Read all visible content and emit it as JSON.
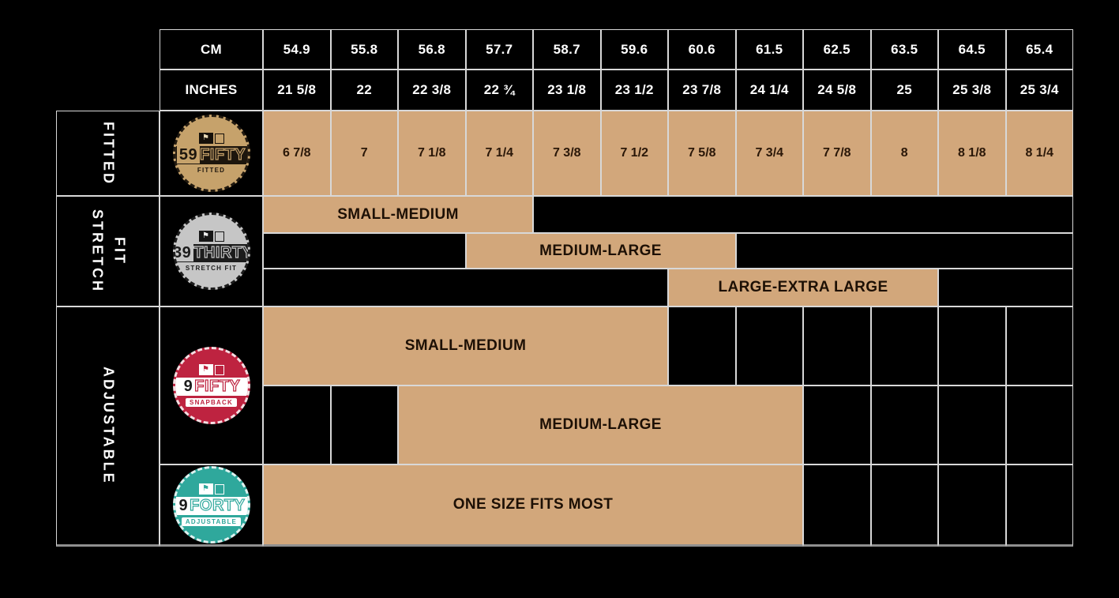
{
  "chart_data": {
    "type": "table",
    "header": {
      "cm_label": "CM",
      "inches_label": "INCHES",
      "cm": [
        "54.9",
        "55.8",
        "56.8",
        "57.7",
        "58.7",
        "59.6",
        "60.6",
        "61.5",
        "62.5",
        "63.5",
        "64.5",
        "65.4"
      ],
      "inches": [
        "21 5/8",
        "22",
        "22 3/8",
        "22 ¾",
        "23 1/8",
        "23 1/2",
        "23 7/8",
        "24 1/4",
        "24 5/8",
        "25",
        "25 3/8",
        "25 3/4"
      ]
    },
    "fitted": {
      "category_lines": [
        "FITTED"
      ],
      "logo": {
        "name": "59FIFTY",
        "prefix": "59",
        "suffix": "FIFTY",
        "tagline": "FITTED"
      },
      "sizes": [
        "6 7/8",
        "7",
        "7 1/8",
        "7 1/4",
        "7 3/8",
        "7 1/2",
        "7 5/8",
        "7 3/4",
        "7 7/8",
        "8",
        "8 1/8",
        "8 1/4"
      ]
    },
    "stretch_fit": {
      "category_lines": [
        "STRETCH",
        "FIT"
      ],
      "logo": {
        "name": "39THIRTY",
        "prefix": "39",
        "suffix": "THIRTY",
        "tagline": "STRETCH FIT"
      },
      "bands": [
        {
          "label": "SMALL-MEDIUM",
          "cm_min": 54.9,
          "cm_max": 57.7
        },
        {
          "label": "MEDIUM-LARGE",
          "cm_min": 57.7,
          "cm_max": 60.6
        },
        {
          "label": "LARGE-EXTRA LARGE",
          "cm_min": 60.6,
          "cm_max": 63.5
        }
      ]
    },
    "adjustable": {
      "category_lines": [
        "ADJUSTABLE"
      ],
      "snapback": {
        "logo": {
          "name": "9FIFTY",
          "prefix": "9",
          "suffix": "FIFTY",
          "tagline": "SNAPBACK"
        },
        "bands": [
          {
            "label": "SMALL-MEDIUM",
            "cm_min": 54.9,
            "cm_max": 59.6
          },
          {
            "label": "MEDIUM-LARGE",
            "cm_min": 56.8,
            "cm_max": 61.5
          }
        ]
      },
      "one_size": {
        "logo": {
          "name": "9FORTY",
          "prefix": "9",
          "suffix": "FORTY",
          "tagline": "ADJUSTABLE"
        },
        "bands": [
          {
            "label": "ONE SIZE FITS MOST",
            "cm_min": 54.9,
            "cm_max": 61.5
          }
        ]
      }
    },
    "colors": {
      "cell_tan": "#D2A77B",
      "grid_line": "#D8D8D8",
      "logo_59fifty": "#C6A26B",
      "logo_39thirty": "#C6C6C6",
      "logo_9fifty": "#BE2340",
      "logo_9forty": "#2FA89C"
    }
  }
}
